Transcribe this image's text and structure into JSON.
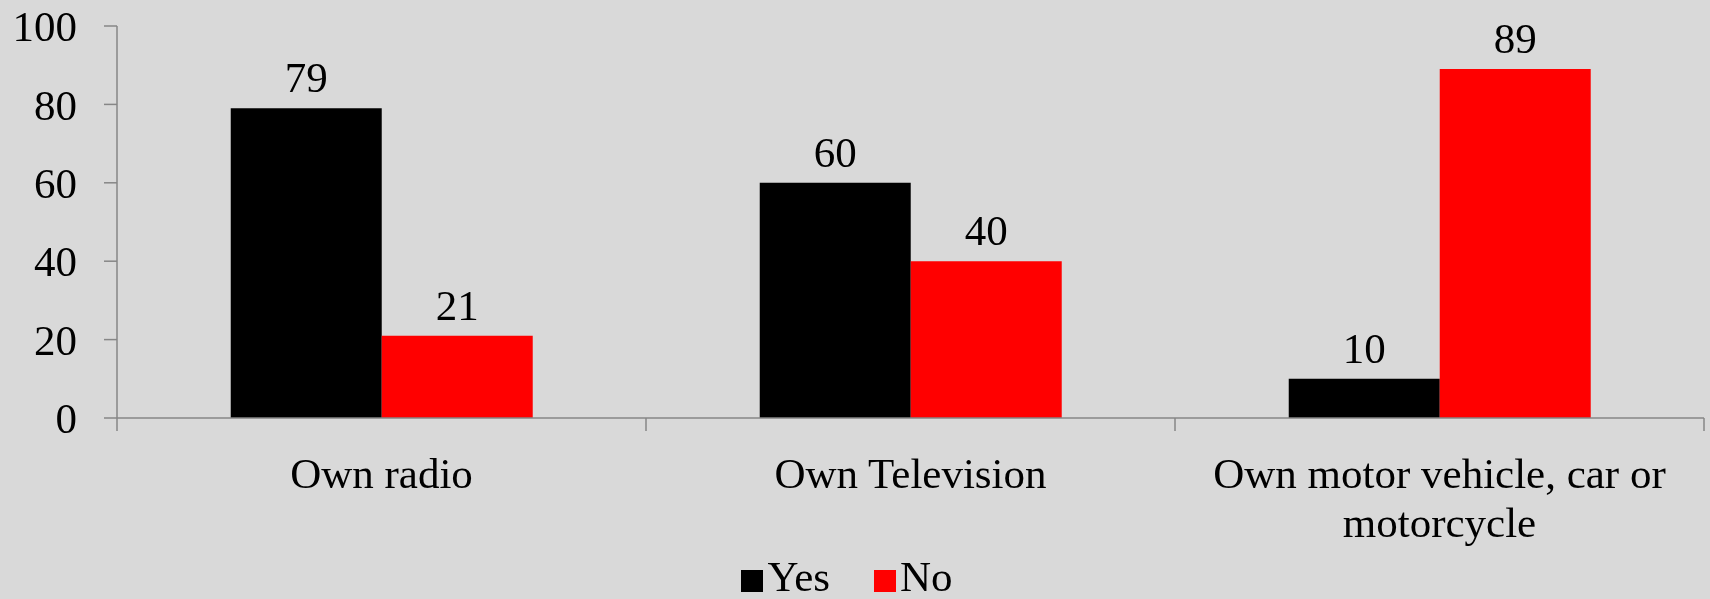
{
  "chart_data": {
    "type": "bar",
    "categories": [
      "Own radio",
      "Own Television",
      "Own motor vehicle, car or motorcycle"
    ],
    "series": [
      {
        "name": "Yes",
        "color": "#000000",
        "values": [
          79,
          60,
          10
        ]
      },
      {
        "name": "No",
        "color": "#ff0000",
        "values": [
          21,
          40,
          89
        ]
      }
    ],
    "ylim": [
      0,
      100
    ],
    "yticks": [
      0,
      20,
      40,
      60,
      80,
      100
    ],
    "grid": false,
    "legend": "bottom",
    "data_labels": true
  }
}
